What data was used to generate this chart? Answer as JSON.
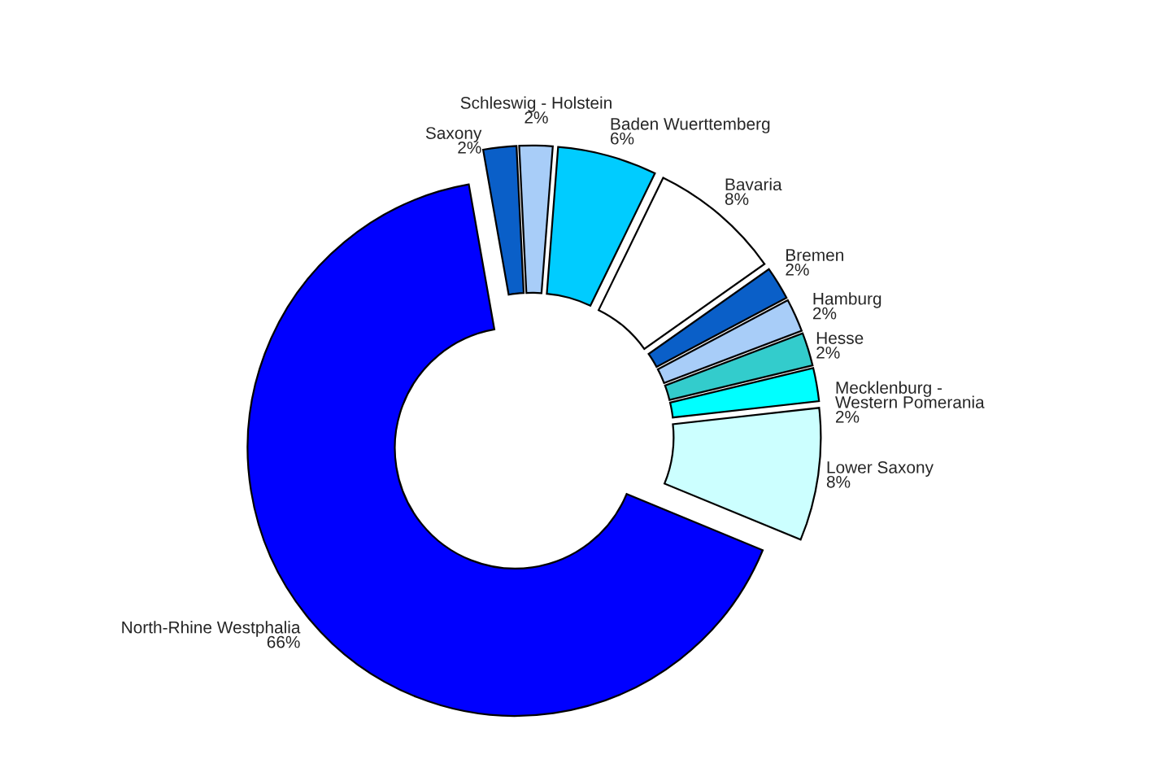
{
  "chart_data": {
    "type": "donut",
    "categories": [
      "Saxony",
      "Schleswig - Holstein",
      "Baden Wuerttemberg",
      "Bavaria",
      "Bremen",
      "Hamburg",
      "Hesse",
      "Mecklenburg -\nWestern Pomerania",
      "Lower Saxony",
      "North-Rhine Westphalia"
    ],
    "values": [
      2,
      2,
      6,
      8,
      2,
      2,
      2,
      2,
      8,
      66
    ],
    "value_labels": [
      "2%",
      "2%",
      "6%",
      "8%",
      "2%",
      "2%",
      "2%",
      "2%",
      "8%",
      "66%"
    ],
    "colors": [
      "#0a5fc8",
      "#a8cdf8",
      "#00ccff",
      "#ffffff",
      "#0a5fc8",
      "#a8cdf8",
      "#33cccc",
      "#00ffff",
      "#ccffff",
      "#0000ff"
    ],
    "legend": false
  }
}
